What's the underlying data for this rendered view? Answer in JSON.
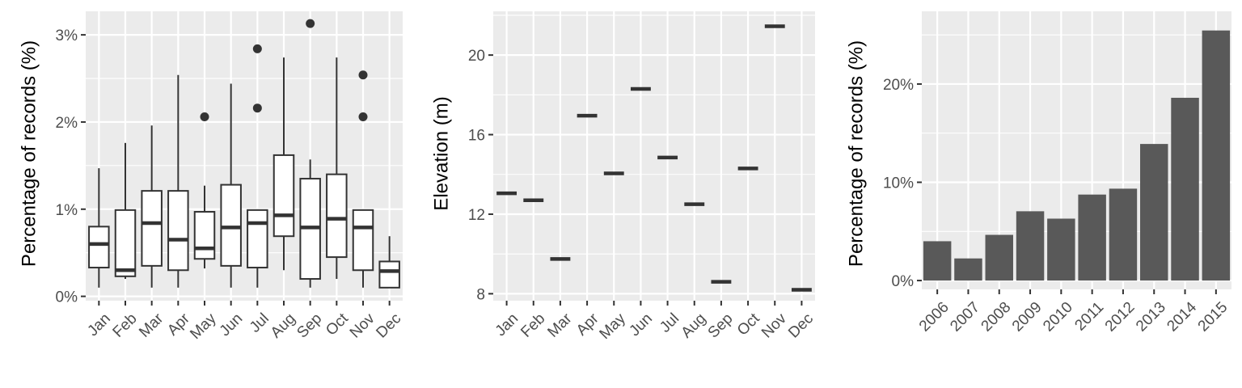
{
  "chart_data": [
    {
      "type": "box",
      "ylabel": "Percentage of records (%)",
      "yticks": [
        {
          "v": 0,
          "label": "0%"
        },
        {
          "v": 1,
          "label": "1%"
        },
        {
          "v": 2,
          "label": "2%"
        },
        {
          "v": 3,
          "label": "3%"
        }
      ],
      "ylim": [
        -0.05,
        3.27
      ],
      "categories": [
        "Jan",
        "Feb",
        "Mar",
        "Apr",
        "May",
        "Jun",
        "Jul",
        "Aug",
        "Sep",
        "Oct",
        "Nov",
        "Dec"
      ],
      "boxes": [
        {
          "min": 0.1,
          "q1": 0.33,
          "median": 0.6,
          "q3": 0.8,
          "max": 1.47,
          "outliers": []
        },
        {
          "min": 0.2,
          "q1": 0.23,
          "median": 0.3,
          "q3": 0.99,
          "max": 1.76,
          "outliers": []
        },
        {
          "min": 0.1,
          "q1": 0.35,
          "median": 0.84,
          "q3": 1.21,
          "max": 1.96,
          "outliers": []
        },
        {
          "min": 0.1,
          "q1": 0.3,
          "median": 0.65,
          "q3": 1.21,
          "max": 2.54,
          "outliers": []
        },
        {
          "min": 0.32,
          "q1": 0.43,
          "median": 0.55,
          "q3": 0.97,
          "max": 1.27,
          "outliers": [
            2.06
          ]
        },
        {
          "min": 0.1,
          "q1": 0.35,
          "median": 0.79,
          "q3": 1.28,
          "max": 2.44,
          "outliers": []
        },
        {
          "min": 0.1,
          "q1": 0.33,
          "median": 0.84,
          "q3": 0.99,
          "max": 0.99,
          "outliers": [
            2.16,
            2.84
          ]
        },
        {
          "min": 0.3,
          "q1": 0.69,
          "median": 0.93,
          "q3": 1.62,
          "max": 2.74,
          "outliers": []
        },
        {
          "min": 0.1,
          "q1": 0.2,
          "median": 0.79,
          "q3": 1.35,
          "max": 1.57,
          "outliers": [
            3.13
          ]
        },
        {
          "min": 0.2,
          "q1": 0.45,
          "median": 0.89,
          "q3": 1.4,
          "max": 2.74,
          "outliers": []
        },
        {
          "min": 0.1,
          "q1": 0.3,
          "median": 0.79,
          "q3": 0.99,
          "max": 0.99,
          "outliers": [
            2.06,
            2.54
          ]
        },
        {
          "min": 0.1,
          "q1": 0.1,
          "median": 0.29,
          "q3": 0.4,
          "max": 0.69,
          "outliers": []
        }
      ]
    },
    {
      "type": "box",
      "ylabel": "Elevation (m)",
      "yticks": [
        {
          "v": 8,
          "label": "8"
        },
        {
          "v": 12,
          "label": "12"
        },
        {
          "v": 16,
          "label": "16"
        },
        {
          "v": 20,
          "label": "20"
        }
      ],
      "ylim": [
        7.65,
        22.2
      ],
      "categories": [
        "Jan",
        "Feb",
        "Mar",
        "Apr",
        "May",
        "Jun",
        "Jul",
        "Aug",
        "Sep",
        "Oct",
        "Nov",
        "Dec"
      ],
      "values": [
        13.05,
        12.7,
        9.75,
        16.95,
        14.05,
        18.3,
        14.85,
        12.5,
        8.6,
        14.3,
        21.45,
        8.2
      ]
    },
    {
      "type": "bar",
      "ylabel": "Percentage of records (%)",
      "yticks": [
        {
          "v": 0,
          "label": "0%"
        },
        {
          "v": 10,
          "label": "10%"
        },
        {
          "v": 20,
          "label": "20%"
        }
      ],
      "ylim": [
        -0.9,
        27.4
      ],
      "categories": [
        "2006",
        "2007",
        "2008",
        "2009",
        "2010",
        "2011",
        "2012",
        "2013",
        "2014",
        "2015"
      ],
      "values": [
        4.0,
        2.25,
        4.65,
        7.05,
        6.3,
        8.75,
        9.35,
        13.9,
        18.6,
        25.45
      ]
    }
  ]
}
